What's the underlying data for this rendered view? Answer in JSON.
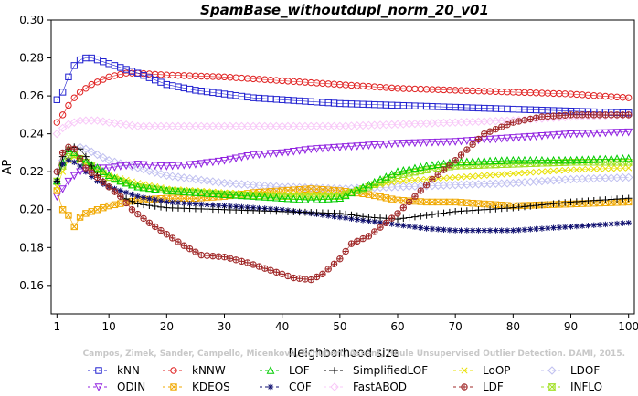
{
  "chart_data": {
    "type": "line",
    "title": "SpamBase_withoutdupl_norm_20_v01",
    "xlabel": "Neighborhood size",
    "ylabel": "AP",
    "xlim": [
      0,
      101
    ],
    "ylim": [
      0.145,
      0.3
    ],
    "x_ticks": [
      1,
      10,
      20,
      30,
      40,
      50,
      60,
      70,
      80,
      90,
      100
    ],
    "y_ticks": [
      0.16,
      0.18,
      0.2,
      0.22,
      0.24,
      0.26,
      0.28,
      0.3
    ],
    "grid": false,
    "legend_position": "bottom",
    "caption": "Campos, Zimek, Sander, Campello, Micenkova, Schubert, Assent, Houle Unsupervised Outlier Detection. DAMI, 2015.",
    "series": [
      {
        "name": "kNN",
        "color": "#2020d0",
        "marker": "square",
        "points": [
          [
            1,
            0.258
          ],
          [
            2,
            0.262
          ],
          [
            3,
            0.27
          ],
          [
            4,
            0.276
          ],
          [
            5,
            0.279
          ],
          [
            6,
            0.28
          ],
          [
            7,
            0.28
          ],
          [
            8,
            0.279
          ],
          [
            10,
            0.277
          ],
          [
            12,
            0.275
          ],
          [
            15,
            0.272
          ],
          [
            20,
            0.266
          ],
          [
            25,
            0.263
          ],
          [
            30,
            0.261
          ],
          [
            35,
            0.259
          ],
          [
            40,
            0.258
          ],
          [
            45,
            0.257
          ],
          [
            50,
            0.256
          ],
          [
            60,
            0.255
          ],
          [
            70,
            0.254
          ],
          [
            80,
            0.253
          ],
          [
            90,
            0.252
          ],
          [
            100,
            0.251
          ]
        ]
      },
      {
        "name": "kNNW",
        "color": "#e02020",
        "marker": "circle",
        "points": [
          [
            1,
            0.246
          ],
          [
            2,
            0.25
          ],
          [
            3,
            0.255
          ],
          [
            4,
            0.259
          ],
          [
            5,
            0.262
          ],
          [
            7,
            0.266
          ],
          [
            10,
            0.27
          ],
          [
            13,
            0.272
          ],
          [
            15,
            0.272
          ],
          [
            20,
            0.271
          ],
          [
            30,
            0.27
          ],
          [
            40,
            0.268
          ],
          [
            50,
            0.266
          ],
          [
            60,
            0.264
          ],
          [
            70,
            0.263
          ],
          [
            80,
            0.262
          ],
          [
            90,
            0.261
          ],
          [
            100,
            0.259
          ]
        ]
      },
      {
        "name": "LOF",
        "color": "#00cc00",
        "marker": "triangle",
        "points": [
          [
            1,
            0.215
          ],
          [
            2,
            0.225
          ],
          [
            3,
            0.232
          ],
          [
            4,
            0.23
          ],
          [
            5,
            0.227
          ],
          [
            6,
            0.225
          ],
          [
            8,
            0.222
          ],
          [
            10,
            0.218
          ],
          [
            12,
            0.215
          ],
          [
            15,
            0.212
          ],
          [
            20,
            0.21
          ],
          [
            25,
            0.209
          ],
          [
            30,
            0.208
          ],
          [
            35,
            0.207
          ],
          [
            40,
            0.206
          ],
          [
            45,
            0.205
          ],
          [
            50,
            0.206
          ],
          [
            55,
            0.213
          ],
          [
            60,
            0.22
          ],
          [
            65,
            0.223
          ],
          [
            70,
            0.225
          ],
          [
            80,
            0.226
          ],
          [
            90,
            0.226
          ],
          [
            100,
            0.227
          ]
        ]
      },
      {
        "name": "SimplifiedLOF",
        "color": "#000000",
        "marker": "plus",
        "points": [
          [
            1,
            0.215
          ],
          [
            2,
            0.228
          ],
          [
            3,
            0.232
          ],
          [
            4,
            0.233
          ],
          [
            5,
            0.232
          ],
          [
            6,
            0.228
          ],
          [
            8,
            0.218
          ],
          [
            10,
            0.212
          ],
          [
            12,
            0.207
          ],
          [
            15,
            0.203
          ],
          [
            20,
            0.201
          ],
          [
            30,
            0.2
          ],
          [
            40,
            0.199
          ],
          [
            50,
            0.198
          ],
          [
            55,
            0.196
          ],
          [
            60,
            0.195
          ],
          [
            65,
            0.197
          ],
          [
            70,
            0.199
          ],
          [
            80,
            0.201
          ],
          [
            90,
            0.204
          ],
          [
            100,
            0.206
          ]
        ]
      },
      {
        "name": "LoOP",
        "color": "#e8e000",
        "marker": "x",
        "points": [
          [
            1,
            0.212
          ],
          [
            2,
            0.22
          ],
          [
            3,
            0.226
          ],
          [
            4,
            0.228
          ],
          [
            5,
            0.226
          ],
          [
            7,
            0.222
          ],
          [
            10,
            0.218
          ],
          [
            15,
            0.214
          ],
          [
            20,
            0.211
          ],
          [
            30,
            0.209
          ],
          [
            40,
            0.208
          ],
          [
            50,
            0.208
          ],
          [
            55,
            0.212
          ],
          [
            60,
            0.215
          ],
          [
            70,
            0.217
          ],
          [
            80,
            0.219
          ],
          [
            90,
            0.221
          ],
          [
            100,
            0.222
          ]
        ]
      },
      {
        "name": "LDOF",
        "color": "#c0c0f0",
        "marker": "diamond",
        "points": [
          [
            1,
            0.22
          ],
          [
            2,
            0.226
          ],
          [
            3,
            0.23
          ],
          [
            4,
            0.232
          ],
          [
            5,
            0.233
          ],
          [
            6,
            0.232
          ],
          [
            8,
            0.229
          ],
          [
            10,
            0.226
          ],
          [
            15,
            0.222
          ],
          [
            20,
            0.218
          ],
          [
            30,
            0.214
          ],
          [
            40,
            0.212
          ],
          [
            50,
            0.211
          ],
          [
            60,
            0.212
          ],
          [
            70,
            0.213
          ],
          [
            80,
            0.214
          ],
          [
            90,
            0.216
          ],
          [
            100,
            0.217
          ]
        ]
      },
      {
        "name": "ODIN",
        "color": "#9020e0",
        "marker": "invtriangle",
        "points": [
          [
            1,
            0.207
          ],
          [
            2,
            0.211
          ],
          [
            3,
            0.215
          ],
          [
            4,
            0.218
          ],
          [
            5,
            0.22
          ],
          [
            8,
            0.222
          ],
          [
            10,
            0.222
          ],
          [
            12,
            0.223
          ],
          [
            15,
            0.224
          ],
          [
            20,
            0.223
          ],
          [
            25,
            0.224
          ],
          [
            30,
            0.226
          ],
          [
            35,
            0.229
          ],
          [
            40,
            0.23
          ],
          [
            45,
            0.232
          ],
          [
            50,
            0.233
          ],
          [
            55,
            0.234
          ],
          [
            60,
            0.235
          ],
          [
            70,
            0.236
          ],
          [
            80,
            0.238
          ],
          [
            90,
            0.24
          ],
          [
            100,
            0.241
          ]
        ]
      },
      {
        "name": "KDEOS",
        "color": "#f0a800",
        "marker": "squarex",
        "points": [
          [
            1,
            0.21
          ],
          [
            2,
            0.2
          ],
          [
            3,
            0.197
          ],
          [
            4,
            0.191
          ],
          [
            5,
            0.196
          ],
          [
            6,
            0.198
          ],
          [
            8,
            0.2
          ],
          [
            10,
            0.202
          ],
          [
            15,
            0.205
          ],
          [
            20,
            0.206
          ],
          [
            25,
            0.206
          ],
          [
            30,
            0.207
          ],
          [
            35,
            0.209
          ],
          [
            40,
            0.21
          ],
          [
            45,
            0.211
          ],
          [
            50,
            0.21
          ],
          [
            55,
            0.208
          ],
          [
            60,
            0.205
          ],
          [
            65,
            0.204
          ],
          [
            70,
            0.204
          ],
          [
            75,
            0.203
          ],
          [
            80,
            0.202
          ],
          [
            90,
            0.203
          ],
          [
            100,
            0.204
          ]
        ]
      },
      {
        "name": "COF",
        "color": "#101070",
        "marker": "asterisk",
        "points": [
          [
            1,
            0.215
          ],
          [
            2,
            0.224
          ],
          [
            3,
            0.226
          ],
          [
            4,
            0.225
          ],
          [
            5,
            0.223
          ],
          [
            6,
            0.22
          ],
          [
            8,
            0.215
          ],
          [
            10,
            0.212
          ],
          [
            15,
            0.207
          ],
          [
            20,
            0.204
          ],
          [
            30,
            0.202
          ],
          [
            40,
            0.2
          ],
          [
            45,
            0.198
          ],
          [
            50,
            0.196
          ],
          [
            55,
            0.194
          ],
          [
            60,
            0.192
          ],
          [
            65,
            0.19
          ],
          [
            70,
            0.189
          ],
          [
            75,
            0.189
          ],
          [
            80,
            0.189
          ],
          [
            85,
            0.19
          ],
          [
            90,
            0.191
          ],
          [
            95,
            0.192
          ],
          [
            100,
            0.193
          ]
        ]
      },
      {
        "name": "FastABOD",
        "color": "#f8c8f8",
        "marker": "diamond",
        "points": [
          [
            1,
            0.24
          ],
          [
            2,
            0.243
          ],
          [
            3,
            0.245
          ],
          [
            4,
            0.246
          ],
          [
            5,
            0.247
          ],
          [
            6,
            0.247
          ],
          [
            8,
            0.247
          ],
          [
            10,
            0.246
          ],
          [
            15,
            0.244
          ],
          [
            20,
            0.244
          ],
          [
            30,
            0.244
          ],
          [
            40,
            0.244
          ],
          [
            50,
            0.244
          ],
          [
            60,
            0.245
          ],
          [
            70,
            0.246
          ],
          [
            80,
            0.247
          ],
          [
            90,
            0.249
          ],
          [
            100,
            0.25
          ]
        ]
      },
      {
        "name": "LDF",
        "color": "#a02828",
        "marker": "circleplus",
        "points": [
          [
            1,
            0.22
          ],
          [
            2,
            0.23
          ],
          [
            3,
            0.233
          ],
          [
            4,
            0.232
          ],
          [
            5,
            0.227
          ],
          [
            6,
            0.222
          ],
          [
            8,
            0.217
          ],
          [
            10,
            0.212
          ],
          [
            12,
            0.207
          ],
          [
            14,
            0.2
          ],
          [
            17,
            0.193
          ],
          [
            20,
            0.187
          ],
          [
            23,
            0.181
          ],
          [
            26,
            0.176
          ],
          [
            30,
            0.175
          ],
          [
            34,
            0.172
          ],
          [
            38,
            0.168
          ],
          [
            42,
            0.164
          ],
          [
            45,
            0.163
          ],
          [
            47,
            0.166
          ],
          [
            50,
            0.174
          ],
          [
            52,
            0.182
          ],
          [
            55,
            0.186
          ],
          [
            58,
            0.193
          ],
          [
            60,
            0.198
          ],
          [
            63,
            0.207
          ],
          [
            66,
            0.216
          ],
          [
            70,
            0.226
          ],
          [
            75,
            0.24
          ],
          [
            80,
            0.246
          ],
          [
            85,
            0.249
          ],
          [
            90,
            0.25
          ],
          [
            95,
            0.25
          ],
          [
            100,
            0.25
          ]
        ]
      },
      {
        "name": "INFLO",
        "color": "#a0e020",
        "marker": "hourglass",
        "points": [
          [
            1,
            0.215
          ],
          [
            2,
            0.223
          ],
          [
            3,
            0.228
          ],
          [
            4,
            0.229
          ],
          [
            5,
            0.227
          ],
          [
            6,
            0.225
          ],
          [
            8,
            0.221
          ],
          [
            10,
            0.217
          ],
          [
            15,
            0.212
          ],
          [
            20,
            0.21
          ],
          [
            30,
            0.208
          ],
          [
            40,
            0.207
          ],
          [
            50,
            0.207
          ],
          [
            55,
            0.212
          ],
          [
            60,
            0.218
          ],
          [
            65,
            0.221
          ],
          [
            70,
            0.223
          ],
          [
            80,
            0.224
          ],
          [
            90,
            0.225
          ],
          [
            100,
            0.225
          ]
        ]
      }
    ],
    "legend_rows": [
      [
        "kNN",
        "kNNW",
        "LOF",
        "SimplifiedLOF",
        "LoOP",
        "LDOF"
      ],
      [
        "ODIN",
        "KDEOS",
        "COF",
        "FastABOD",
        "LDF",
        "INFLO"
      ]
    ]
  }
}
